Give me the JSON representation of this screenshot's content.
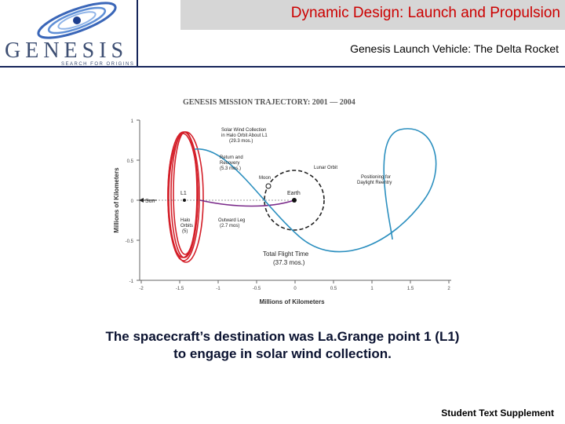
{
  "header": {
    "title": "Dynamic Design: Launch and Propulsion",
    "subtitle": "Genesis Launch Vehicle: The Delta Rocket"
  },
  "logo": {
    "name": "GENESIS",
    "tagline": "SEARCH FOR ORIGINS"
  },
  "figure": {
    "title": "GENESIS MISSION TRAJECTORY: 2001 — 2004",
    "ylabel": "Millions of Kilometers",
    "xlabel": "Millions of Kilometers",
    "xticks": [
      "-2",
      "-1.5",
      "-1",
      "-0.5",
      "0",
      "0.5",
      "1",
      "1.5",
      "2"
    ],
    "yticks": [
      "1",
      "0.5",
      "0",
      "-0.5",
      "-1"
    ],
    "labels": {
      "sun": "Sun",
      "l1": "L1",
      "moon": "Moon",
      "earth": "Earth",
      "lunar_orbit": "Lunar Orbit",
      "solar_wind_1": "Solar Wind Collection",
      "solar_wind_2": "in Halo Orbit About L1",
      "solar_wind_3": "(29.3 mos.)",
      "return_1": "Return and",
      "return_2": "Recovery",
      "return_3": "(5.3 mos.)",
      "positioning_1": "Positioning for",
      "positioning_2": "Daylight Reentry",
      "outward_1": "Outward Leg",
      "outward_2": "(2.7 mos)",
      "halo_1": "Halo",
      "halo_2": "Orbits",
      "halo_3": "(5)",
      "total_1": "Total Flight Time",
      "total_2": "(37.3 mos.)"
    }
  },
  "caption": {
    "line1": "The spacecraft’s destination was La.Grange point 1 (L1)",
    "line2": "to engage in solar wind collection."
  },
  "footer": {
    "text": "Student Text Supplement"
  }
}
